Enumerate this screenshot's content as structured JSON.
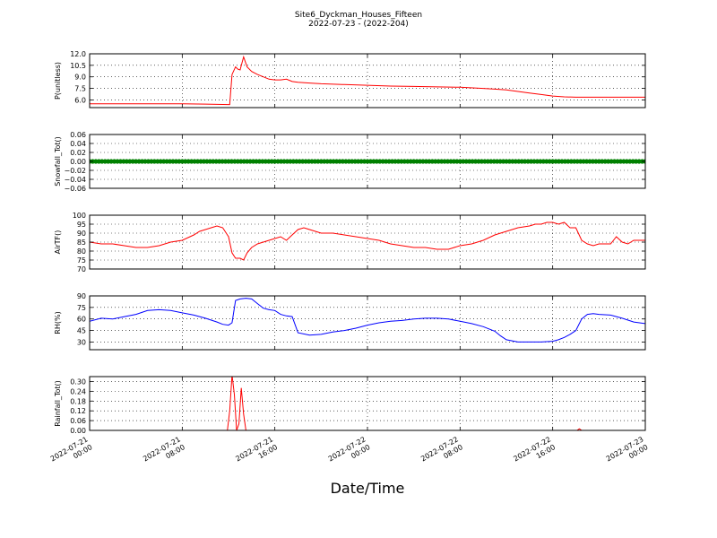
{
  "figure": {
    "title": "Site6_Dyckman_Houses_Fifteen",
    "subtitle": "2022-07-23 - (2022-204)",
    "xlabel": "Date/Time",
    "x_ticks": [
      {
        "value": 0,
        "line1": "2022-07-21",
        "line2": "00:00"
      },
      {
        "value": 8,
        "line1": "2022-07-21",
        "line2": "08:00"
      },
      {
        "value": 16,
        "line1": "2022-07-21",
        "line2": "16:00"
      },
      {
        "value": 24,
        "line1": "2022-07-22",
        "line2": "00:00"
      },
      {
        "value": 32,
        "line1": "2022-07-22",
        "line2": "08:00"
      },
      {
        "value": 40,
        "line1": "2022-07-22",
        "line2": "16:00"
      },
      {
        "value": 48,
        "line1": "2022-07-23",
        "line2": "00:00"
      }
    ],
    "x_range": [
      0,
      48
    ]
  },
  "chart_data": [
    {
      "type": "line",
      "ylabel": "P(unitless)",
      "ylim": [
        5.0,
        12.0
      ],
      "yticks": [
        "6.0",
        "7.5",
        "9.0",
        "10.5",
        "12.0"
      ],
      "ytick_values": [
        6.0,
        7.5,
        9.0,
        10.5,
        12.0
      ],
      "grid": true,
      "color": "#ff0000",
      "x": [
        0,
        4,
        8,
        10,
        12,
        12.1,
        12.3,
        12.6,
        12.8,
        13.0,
        13.3,
        13.6,
        14,
        14.5,
        15,
        15.5,
        16,
        16.5,
        17,
        17.5,
        18,
        19,
        20,
        22,
        24,
        26,
        28,
        30,
        32,
        34,
        35,
        36,
        37,
        38,
        39,
        40,
        41,
        42,
        44,
        46,
        48
      ],
      "y": [
        5.5,
        5.5,
        5.5,
        5.45,
        5.4,
        5.4,
        9.3,
        10.3,
        10.0,
        9.9,
        11.6,
        10.3,
        9.7,
        9.3,
        9.0,
        8.7,
        8.6,
        8.6,
        8.7,
        8.4,
        8.3,
        8.2,
        8.1,
        8.0,
        7.9,
        7.8,
        7.75,
        7.7,
        7.65,
        7.5,
        7.4,
        7.3,
        7.1,
        6.9,
        6.7,
        6.5,
        6.4,
        6.35,
        6.35,
        6.35,
        6.35
      ]
    },
    {
      "type": "scatter",
      "ylabel": "Snowfall_Tot()",
      "ylim": [
        -0.06,
        0.06
      ],
      "yticks": [
        "−0.06",
        "−0.04",
        "−0.02",
        "0.00",
        "0.02",
        "0.04",
        "0.06"
      ],
      "ytick_values": [
        -0.06,
        -0.04,
        -0.02,
        0.0,
        0.02,
        0.04,
        0.06
      ],
      "grid": true,
      "color": "#008000",
      "x_range": [
        0,
        48
      ],
      "y_constant": 0.0
    },
    {
      "type": "line",
      "ylabel": "AirTF()",
      "ylim": [
        70,
        100
      ],
      "yticks": [
        "70",
        "75",
        "80",
        "85",
        "90",
        "95",
        "100"
      ],
      "ytick_values": [
        70,
        75,
        80,
        85,
        90,
        95,
        100
      ],
      "grid": true,
      "color": "#ff0000",
      "x": [
        0,
        1,
        2,
        3,
        4,
        5,
        6,
        7,
        8,
        9,
        9.5,
        10,
        10.5,
        11,
        11.5,
        12,
        12.3,
        12.6,
        13,
        13.3,
        13.6,
        14,
        14.5,
        15,
        15.5,
        16,
        16.5,
        17,
        17.5,
        18,
        18.5,
        19,
        20,
        21,
        22,
        23,
        24,
        25,
        26,
        27,
        28,
        29,
        30,
        31,
        32,
        33,
        34,
        35,
        36,
        37,
        38,
        38.5,
        39,
        39.5,
        40,
        40.5,
        41,
        41.5,
        42,
        42.5,
        43,
        43.5,
        44,
        44.5,
        45,
        45.5,
        46,
        46.5,
        47,
        48
      ],
      "y": [
        85,
        84,
        84,
        83,
        82,
        82,
        83,
        85,
        86,
        89,
        91,
        92,
        93,
        94,
        93,
        88,
        79,
        76,
        76,
        75,
        79,
        82,
        84,
        85,
        86,
        87,
        88,
        86,
        89,
        92,
        93,
        92,
        90,
        90,
        89,
        88,
        87,
        86,
        84,
        83,
        82,
        82,
        81,
        81,
        83,
        84,
        86,
        89,
        91,
        93,
        94,
        95,
        95,
        96,
        96,
        95,
        96,
        93,
        93,
        86,
        84,
        83,
        84,
        84,
        84,
        88,
        85,
        84,
        86,
        86
      ]
    },
    {
      "type": "line",
      "ylabel": "RH(%)",
      "ylim": [
        20,
        90
      ],
      "yticks": [
        "30",
        "45",
        "60",
        "75",
        "90"
      ],
      "ytick_values": [
        30,
        45,
        60,
        75,
        90
      ],
      "grid": true,
      "color": "#0000ff",
      "x": [
        0,
        1,
        2,
        3,
        4,
        5,
        6,
        7,
        8,
        9,
        10,
        11,
        11.5,
        12,
        12.3,
        12.6,
        13,
        13.5,
        14,
        14.5,
        15,
        15.5,
        16,
        16.5,
        17,
        17.5,
        18,
        19,
        20,
        21,
        22,
        23,
        24,
        25,
        26,
        27,
        28,
        29,
        30,
        31,
        32,
        33,
        34,
        35,
        35.5,
        36,
        37,
        38,
        39,
        40,
        40.5,
        41,
        41.5,
        42,
        42.5,
        43,
        43.5,
        44,
        45,
        46,
        47,
        48
      ],
      "y": [
        57,
        61,
        60,
        63,
        66,
        71,
        72,
        71,
        68,
        65,
        61,
        56,
        53,
        52,
        55,
        84,
        86,
        87,
        86,
        80,
        74,
        72,
        71,
        66,
        64,
        63,
        42,
        39,
        40,
        43,
        45,
        48,
        52,
        55,
        57,
        58,
        60,
        61,
        61,
        60,
        57,
        54,
        50,
        44,
        38,
        33,
        30,
        30,
        30,
        31,
        33,
        36,
        40,
        45,
        60,
        66,
        67,
        66,
        65,
        61,
        56,
        54
      ]
    },
    {
      "type": "line",
      "ylabel": "Rainfall_Tot()",
      "ylim": [
        0.0,
        0.33
      ],
      "yticks": [
        "0.00",
        "0.06",
        "0.12",
        "0.18",
        "0.24",
        "0.30"
      ],
      "ytick_values": [
        0.0,
        0.06,
        0.12,
        0.18,
        0.24,
        0.3
      ],
      "grid": true,
      "color": "#ff0000",
      "x": [
        0,
        11.9,
        12.1,
        12.3,
        12.5,
        12.7,
        12.9,
        13.1,
        13.3,
        13.5,
        13.7,
        14.2,
        40,
        42.1,
        42.3,
        42.5,
        48
      ],
      "y": [
        0,
        0,
        0.12,
        0.34,
        0.22,
        0.0,
        0.04,
        0.26,
        0.1,
        0.0,
        0.0,
        0.0,
        0.0,
        0.0,
        0.01,
        0.0,
        0.0
      ]
    }
  ]
}
